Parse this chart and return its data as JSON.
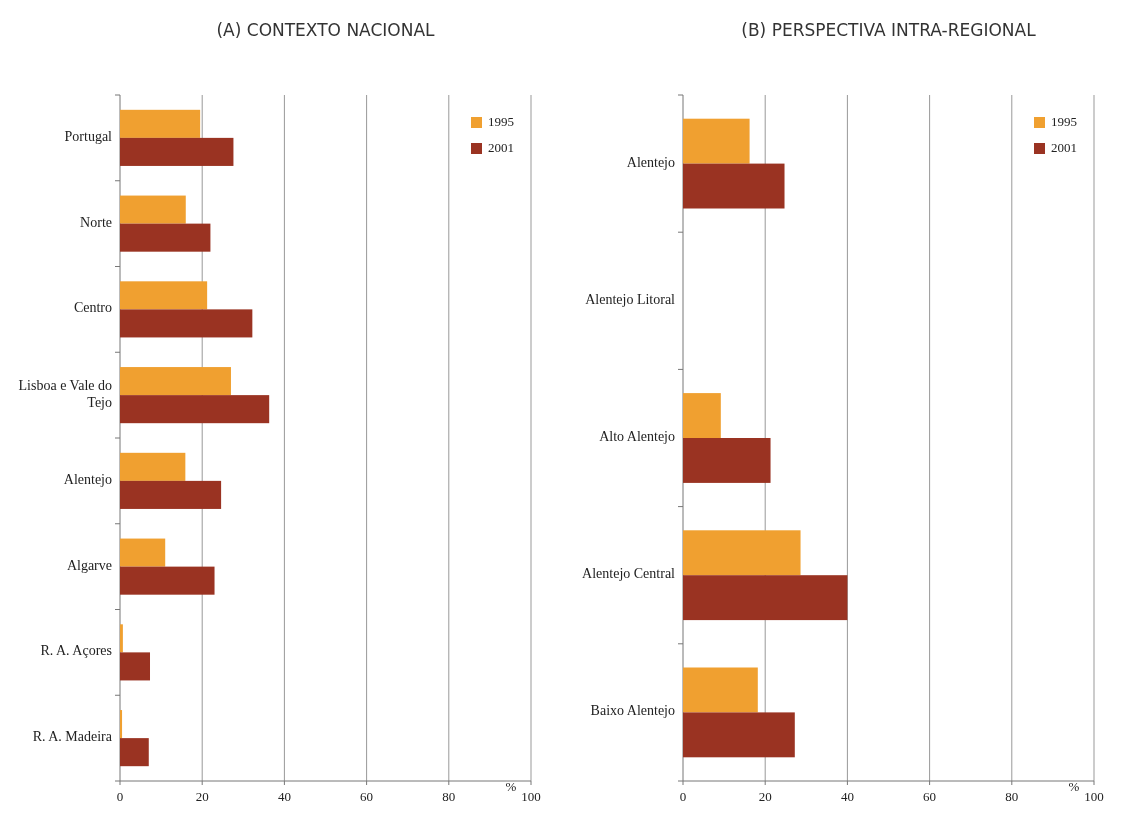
{
  "chart_data": [
    {
      "type": "bar",
      "orientation": "horizontal",
      "title": "(A) CONTEXTO NACIONAL",
      "xlabel": "%",
      "categories": [
        "Portugal",
        "Norte",
        "Centro",
        "Lisboa e Vale do Tejo",
        "Alentejo",
        "Algarve",
        "R. A. Açores",
        "R. A. Madeira"
      ],
      "series": [
        {
          "name": "1995",
          "color": "#f0a030",
          "values": [
            19.5,
            16,
            21.2,
            27,
            15.9,
            11,
            0.7,
            0.5
          ]
        },
        {
          "name": "2001",
          "color": "#9a3322",
          "values": [
            27.6,
            22,
            32.2,
            36.3,
            24.6,
            23,
            7.3,
            7
          ]
        }
      ],
      "xlim": [
        0,
        100
      ],
      "xticks": [
        0,
        20,
        40,
        60,
        80,
        100
      ],
      "grid": "x",
      "legend": "top right"
    },
    {
      "type": "bar",
      "orientation": "horizontal",
      "title": "(B) PERSPECTIVA INTRA-REGIONAL",
      "xlabel": "%",
      "categories": [
        "Alentejo",
        "Alentejo Litoral",
        "Alto Alentejo",
        "Alentejo Central",
        "Baixo Alentejo"
      ],
      "series": [
        {
          "name": "1995",
          "color": "#f0a030",
          "values": [
            16.2,
            0,
            9.2,
            28.6,
            18.2
          ]
        },
        {
          "name": "2001",
          "color": "#9a3322",
          "values": [
            24.7,
            0,
            21.3,
            40,
            27.2
          ]
        }
      ],
      "xlim": [
        0,
        100
      ],
      "xticks": [
        0,
        20,
        40,
        60,
        80,
        100
      ],
      "grid": "x",
      "legend": "top right"
    }
  ]
}
